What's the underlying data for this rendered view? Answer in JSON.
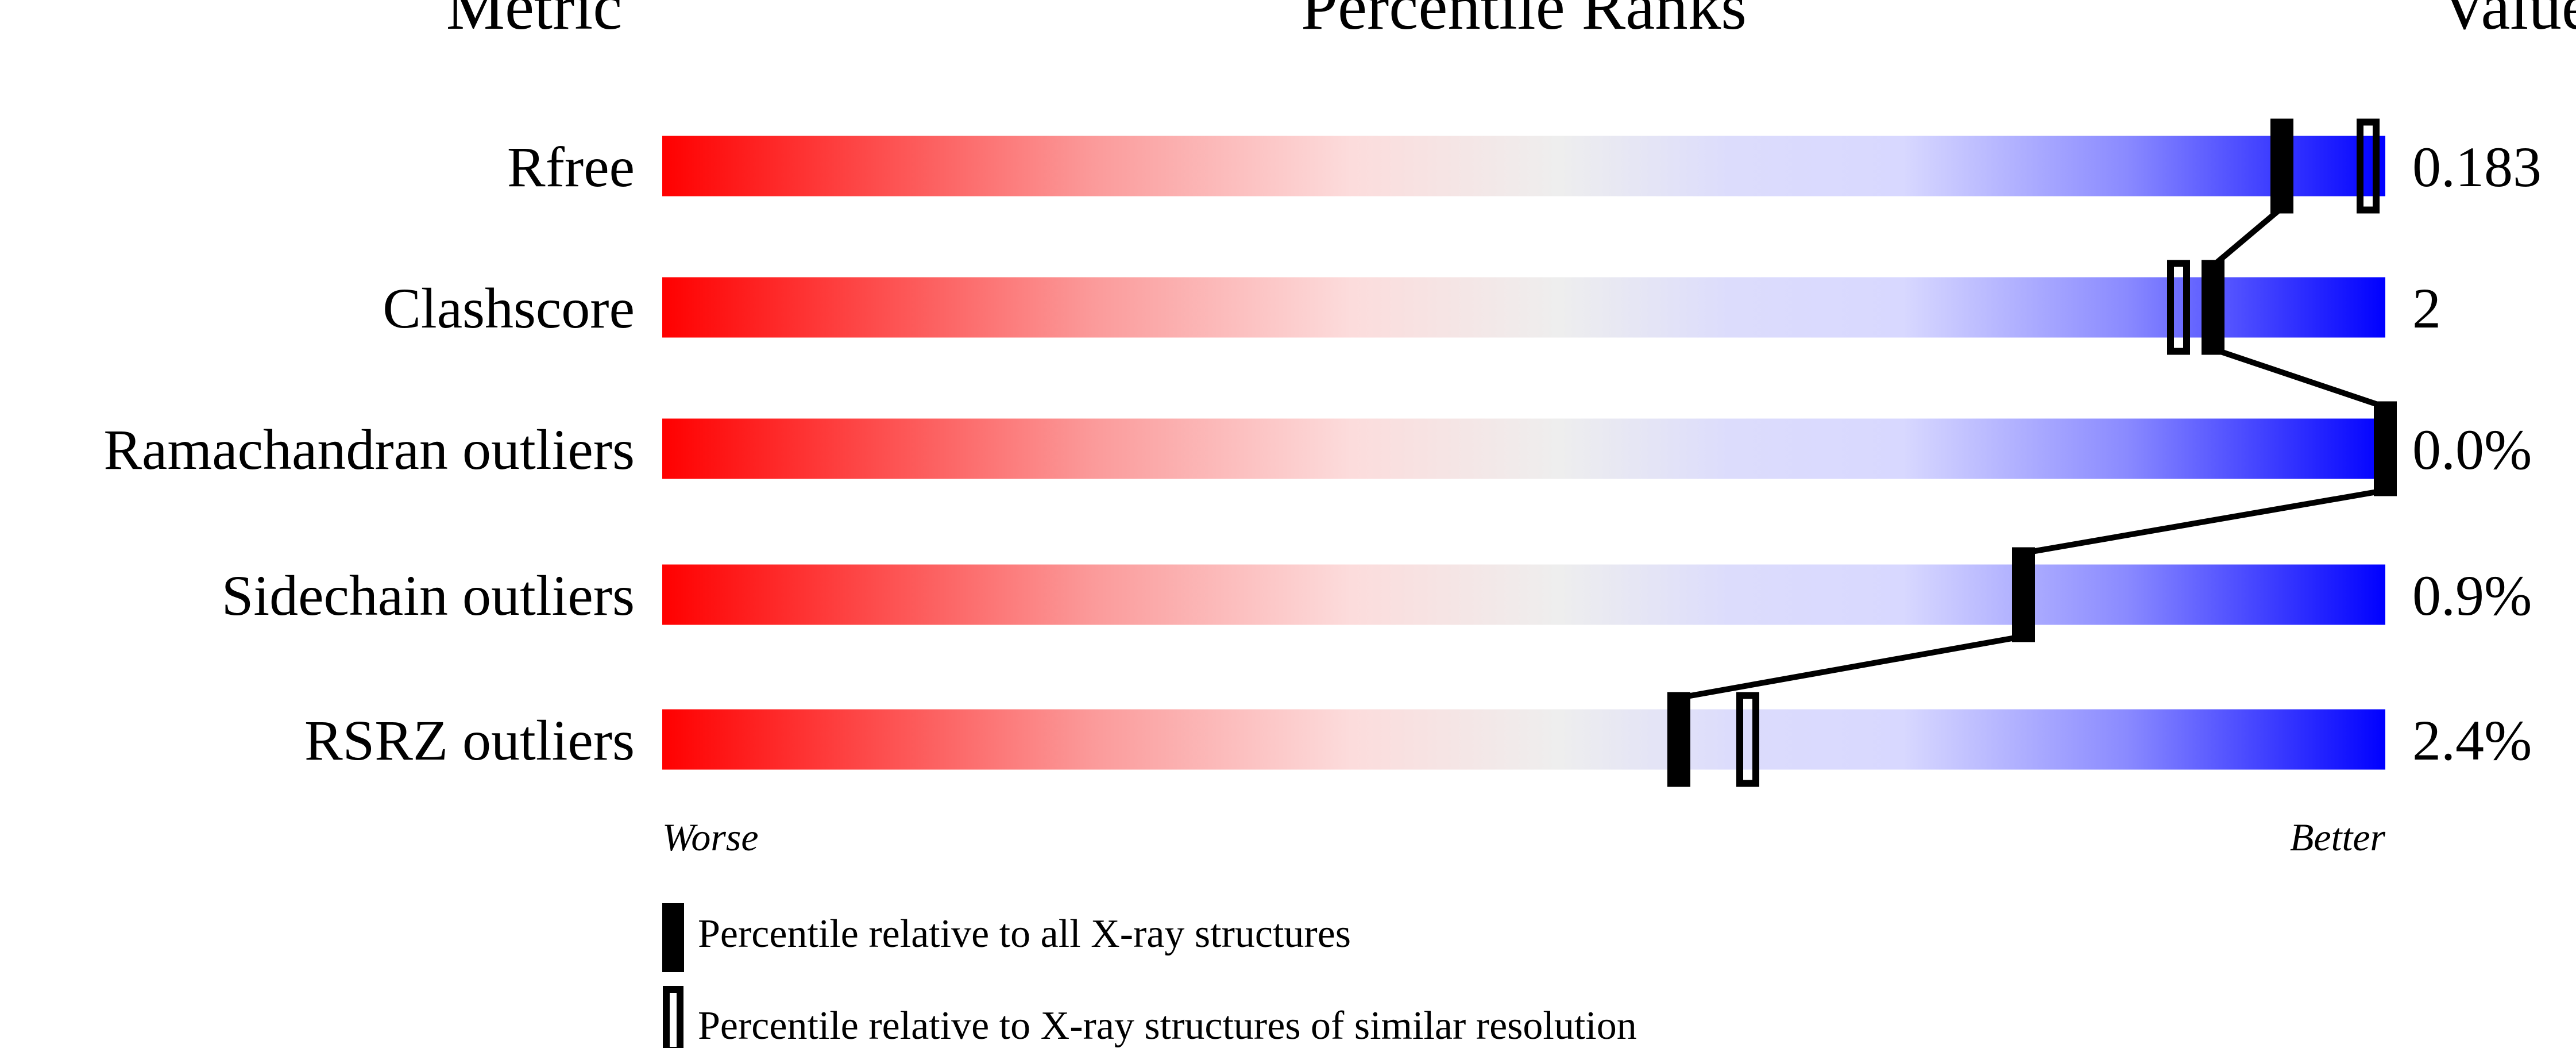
{
  "chart_data": {
    "type": "percentile-slider",
    "headers": {
      "metric": "Metric",
      "ranks": "Percentile Ranks",
      "value": "Value"
    },
    "xlim": [
      0,
      100
    ],
    "gradient_colors": {
      "worse": "#ff0000",
      "middle": "#eeeeee",
      "light_blue": "#d8d8ff",
      "better": "#0000ff"
    },
    "rows": [
      {
        "metric": "Rfree",
        "value": "0.183",
        "percentile_all": 94,
        "percentile_similar": 99
      },
      {
        "metric": "Clashscore",
        "value": "2",
        "percentile_all": 90,
        "percentile_similar": 88
      },
      {
        "metric": "Ramachandran outliers",
        "value": "0.0%",
        "percentile_all": 100,
        "percentile_similar": null
      },
      {
        "metric": "Sidechain outliers",
        "value": "0.9%",
        "percentile_all": 79,
        "percentile_similar": null
      },
      {
        "metric": "RSRZ outliers",
        "value": "2.4%",
        "percentile_all": 59,
        "percentile_similar": 63
      }
    ],
    "axis_labels": {
      "worse": "Worse",
      "better": "Better"
    },
    "legend": {
      "all": "Percentile relative to all X-ray structures",
      "similar": "Percentile relative to X-ray structures of similar resolution"
    }
  }
}
